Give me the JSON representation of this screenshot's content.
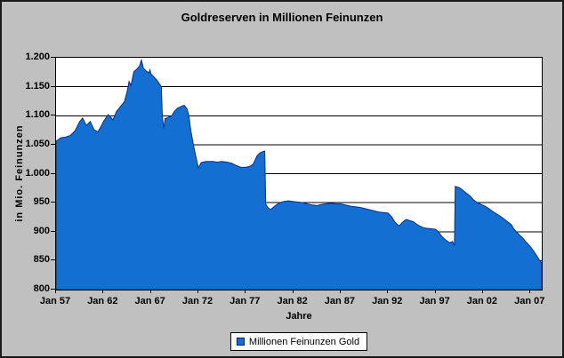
{
  "window": {
    "background_color": "#c0c0c0",
    "border_color": "#1a1a1a"
  },
  "chart_data": {
    "type": "area",
    "title": "Goldreserven in Millionen Feinunzen",
    "xlabel": "Jahre",
    "ylabel": "in Mio. Feinunzen",
    "grid": true,
    "legend_position": "bottom",
    "plot_bg": "#ffffff",
    "grid_color": "#000000",
    "x_range": [
      1957,
      2008.2
    ],
    "y_range": [
      800,
      1200
    ],
    "y_ticks": [
      {
        "label": "1.200",
        "value": 1200
      },
      {
        "label": "1.150",
        "value": 1150
      },
      {
        "label": "1.100",
        "value": 1100
      },
      {
        "label": "1.050",
        "value": 1050
      },
      {
        "label": "1.000",
        "value": 1000
      },
      {
        "label": "950",
        "value": 950
      },
      {
        "label": "900",
        "value": 900
      },
      {
        "label": "850",
        "value": 850
      },
      {
        "label": "800",
        "value": 800
      }
    ],
    "x_ticks": [
      {
        "label": "Jan 57",
        "value": 1957
      },
      {
        "label": "Jan 62",
        "value": 1962
      },
      {
        "label": "Jan 67",
        "value": 1967
      },
      {
        "label": "Jan 72",
        "value": 1972
      },
      {
        "label": "Jan 77",
        "value": 1977
      },
      {
        "label": "Jan 82",
        "value": 1982
      },
      {
        "label": "Jan 87",
        "value": 1987
      },
      {
        "label": "Jan 92",
        "value": 1992
      },
      {
        "label": "Jan 97",
        "value": 1997
      },
      {
        "label": "Jan 02",
        "value": 2002
      },
      {
        "label": "Jan 07",
        "value": 2007
      }
    ],
    "series": [
      {
        "name": "Millionen Feinunzen Gold",
        "fill_color": "#1370d2",
        "edge_color": "#002d8f",
        "x": [
          1957.0,
          1957.5,
          1958.0,
          1958.5,
          1959.0,
          1959.5,
          1959.8,
          1960.2,
          1960.6,
          1961.0,
          1961.4,
          1961.7,
          1962.0,
          1962.5,
          1963.0,
          1963.4,
          1963.8,
          1964.2,
          1964.5,
          1964.7,
          1964.9,
          1965.2,
          1965.5,
          1965.8,
          1966.0,
          1966.2,
          1966.5,
          1966.8,
          1966.9,
          1967.0,
          1967.3,
          1967.6,
          1967.9,
          1968.1,
          1968.2,
          1968.35,
          1968.5,
          1968.8,
          1969.2,
          1969.5,
          1969.8,
          1970.2,
          1970.5,
          1970.8,
          1971.0,
          1971.2,
          1971.5,
          1971.8,
          1972.0,
          1972.3,
          1972.8,
          1973.5,
          1974.0,
          1974.5,
          1975.0,
          1975.5,
          1976.0,
          1976.5,
          1977.0,
          1977.5,
          1977.8,
          1978.0,
          1978.2,
          1978.5,
          1978.8,
          1979.0,
          1979.1,
          1979.3,
          1979.6,
          1979.9,
          1980.2,
          1980.6,
          1981.0,
          1981.5,
          1982.0,
          1982.5,
          1983.0,
          1983.5,
          1984.0,
          1984.5,
          1985.0,
          1985.5,
          1986.0,
          1986.5,
          1987.0,
          1987.5,
          1988.0,
          1988.5,
          1989.0,
          1989.5,
          1990.0,
          1990.5,
          1991.0,
          1991.5,
          1992.0,
          1992.4,
          1992.7,
          1993.0,
          1993.2,
          1993.5,
          1993.9,
          1994.3,
          1994.7,
          1995.0,
          1995.3,
          1995.7,
          1996.0,
          1996.5,
          1997.0,
          1997.3,
          1997.6,
          1997.9,
          1998.2,
          1998.5,
          1998.8,
          1999.0,
          1999.08,
          1999.3,
          1999.6,
          1999.9,
          2000.2,
          2000.6,
          2001.0,
          2001.4,
          2001.8,
          2002.2,
          2002.6,
          2003.0,
          2003.4,
          2003.8,
          2004.2,
          2004.6,
          2005.0,
          2005.2,
          2005.5,
          2005.8,
          2006.2,
          2006.6,
          2007.0,
          2007.4,
          2007.8,
          2008.0,
          2008.2
        ],
        "values": [
          1056,
          1062,
          1063,
          1066,
          1074,
          1090,
          1096,
          1083,
          1090,
          1076,
          1072,
          1080,
          1090,
          1102,
          1093,
          1108,
          1116,
          1124,
          1142,
          1159,
          1152,
          1176,
          1180,
          1186,
          1196,
          1182,
          1177,
          1174,
          1179,
          1172,
          1167,
          1162,
          1155,
          1150,
          1100,
          1078,
          1095,
          1097,
          1100,
          1108,
          1113,
          1116,
          1118,
          1112,
          1100,
          1075,
          1048,
          1025,
          1010,
          1019,
          1021,
          1021,
          1020,
          1021,
          1020,
          1018,
          1014,
          1011,
          1011,
          1013,
          1017,
          1024,
          1031,
          1036,
          1038,
          1039,
          948,
          942,
          938,
          942,
          946,
          950,
          952,
          953,
          952,
          951,
          950,
          948,
          946,
          945,
          947,
          948,
          949,
          948,
          948,
          946,
          944,
          943,
          942,
          940,
          938,
          936,
          934,
          933,
          932,
          925,
          917,
          912,
          910,
          916,
          921,
          919,
          917,
          913,
          910,
          907,
          906,
          905,
          904,
          900,
          893,
          888,
          884,
          881,
          883,
          876,
          978,
          977,
          975,
          971,
          967,
          962,
          955,
          950,
          947,
          944,
          940,
          935,
          931,
          927,
          922,
          917,
          912,
          906,
          900,
          895,
          889,
          881,
          874,
          865,
          855,
          850,
          846
        ]
      }
    ]
  }
}
